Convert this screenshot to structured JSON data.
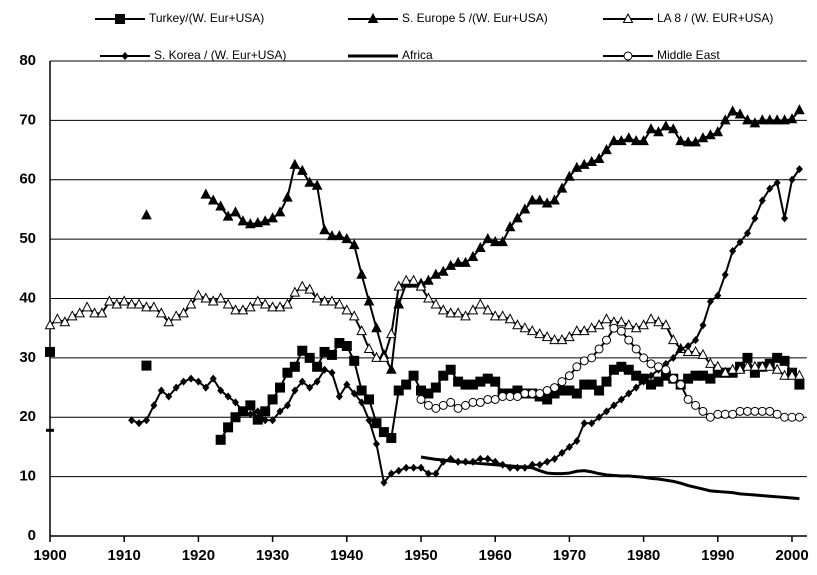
{
  "chart_data": {
    "type": "line",
    "x": [
      1900,
      1901,
      1902,
      1903,
      1904,
      1905,
      1906,
      1907,
      1908,
      1909,
      1910,
      1911,
      1912,
      1913,
      1914,
      1915,
      1916,
      1917,
      1918,
      1919,
      1920,
      1921,
      1922,
      1923,
      1924,
      1925,
      1926,
      1927,
      1928,
      1929,
      1930,
      1931,
      1932,
      1933,
      1934,
      1935,
      1936,
      1937,
      1938,
      1939,
      1940,
      1941,
      1942,
      1943,
      1944,
      1945,
      1946,
      1947,
      1948,
      1949,
      1950,
      1951,
      1952,
      1953,
      1954,
      1955,
      1956,
      1957,
      1958,
      1959,
      1960,
      1961,
      1962,
      1963,
      1964,
      1965,
      1966,
      1967,
      1968,
      1969,
      1970,
      1971,
      1972,
      1973,
      1974,
      1975,
      1976,
      1977,
      1978,
      1979,
      1980,
      1981,
      1982,
      1983,
      1984,
      1985,
      1986,
      1987,
      1988,
      1989,
      1990,
      1991,
      1992,
      1993,
      1994,
      1995,
      1996,
      1997,
      1998,
      1999,
      2000,
      2001
    ],
    "xlim": [
      1900,
      2002
    ],
    "xticks": [
      1900,
      1910,
      1920,
      1930,
      1940,
      1950,
      1960,
      1970,
      1980,
      1990,
      2000
    ],
    "ylim": [
      0,
      80
    ],
    "yticks": [
      0,
      10,
      20,
      30,
      40,
      50,
      60,
      70,
      80
    ],
    "grid": true,
    "series": [
      {
        "name": "Turkey/(W. Eur+USA)",
        "color": "#000000",
        "marker": "square",
        "values": [
          31,
          null,
          null,
          null,
          null,
          null,
          null,
          null,
          null,
          null,
          null,
          null,
          null,
          28.7,
          null,
          null,
          null,
          null,
          null,
          null,
          null,
          null,
          null,
          16.2,
          18.3,
          20,
          21,
          22,
          19.6,
          21,
          23,
          25,
          27.5,
          28.5,
          31.2,
          30,
          28.5,
          31,
          30.5,
          32.5,
          32,
          29.5,
          24.5,
          23,
          19,
          17.5,
          16.5,
          24.5,
          25.5,
          27,
          24.5,
          24,
          25,
          27,
          28,
          26,
          25.5,
          25.5,
          26,
          26.5,
          26,
          24,
          24,
          24.5,
          24,
          24,
          23.5,
          23,
          24,
          24.5,
          24.5,
          24,
          25.5,
          25.5,
          24.5,
          26,
          28,
          28.5,
          28,
          27,
          26.5,
          25.5,
          26,
          27,
          26.5,
          25.5,
          26.5,
          27,
          27,
          26.5,
          27.5,
          27.5,
          27.5,
          28.5,
          30,
          27.5,
          28.5,
          29,
          30,
          29.5,
          27.5,
          25.5
        ]
      },
      {
        "name": "S. Europe 5 /(W. Eur+USA)",
        "color": "#000000",
        "marker": "triangle",
        "values": [
          null,
          null,
          null,
          null,
          null,
          null,
          null,
          null,
          null,
          null,
          null,
          null,
          null,
          54,
          null,
          null,
          null,
          null,
          null,
          null,
          null,
          57.5,
          56.5,
          55.5,
          53.8,
          54.5,
          53,
          52.5,
          52.7,
          53,
          53.5,
          54.5,
          57,
          62.5,
          61.5,
          59.5,
          59,
          51.5,
          50.5,
          50.5,
          50,
          49,
          44,
          39.5,
          35,
          30.5,
          28,
          39,
          42.5,
          42.5,
          42.5,
          43,
          44,
          44.5,
          45.5,
          46,
          46,
          47,
          48.5,
          50,
          49.5,
          49.5,
          52,
          53.5,
          55,
          56.5,
          56.5,
          56,
          56.5,
          58.5,
          60.5,
          62,
          62.5,
          63,
          63.5,
          65,
          66.5,
          66.5,
          67,
          66.5,
          66.5,
          68.5,
          68,
          69,
          68.5,
          66.5,
          66.3,
          66.3,
          67,
          67.5,
          68,
          70,
          71.5,
          71,
          70,
          69.5,
          70,
          70,
          70,
          70,
          70.2,
          71.7
        ]
      },
      {
        "name": "LA 8 / (W. EUR+USA)",
        "color": "#000000",
        "marker": "triangle-open",
        "values": [
          35.5,
          36.5,
          36,
          37,
          37.5,
          38.5,
          37.5,
          37.5,
          39.5,
          39,
          39.5,
          39,
          39,
          38.5,
          38.5,
          37.5,
          36,
          37,
          37.5,
          39,
          40.5,
          40,
          39.5,
          40,
          39,
          38,
          38,
          38.5,
          39.5,
          39,
          38.5,
          38.5,
          39,
          41,
          42,
          41.5,
          40,
          39.5,
          39.5,
          39,
          38,
          37,
          34.5,
          31.5,
          30,
          30,
          34,
          42,
          43,
          43,
          42,
          40,
          39,
          38,
          37.5,
          37.5,
          37,
          38,
          39,
          38,
          37,
          37,
          36.5,
          35.5,
          35,
          34.5,
          34,
          33.5,
          33,
          33,
          33.5,
          34.5,
          34.5,
          35,
          35.5,
          36.5,
          36,
          36,
          35.5,
          35,
          35.5,
          36.5,
          36,
          35.5,
          33,
          31.5,
          31,
          31,
          30.5,
          29,
          28.5,
          27.5,
          28,
          28,
          28.5,
          28.5,
          28.5,
          28.5,
          28,
          27,
          27,
          27
        ]
      },
      {
        "name": "S. Korea / (W. Eur+USA)",
        "color": "#000000",
        "marker": "diamond",
        "values": [
          null,
          null,
          null,
          null,
          null,
          null,
          null,
          null,
          null,
          null,
          null,
          19.5,
          19,
          19.5,
          22,
          24.5,
          23.5,
          25,
          26,
          26.5,
          26,
          25,
          26.5,
          24.5,
          23.5,
          22.5,
          21,
          20.5,
          21,
          19.5,
          19.5,
          21,
          22,
          24.5,
          26,
          25,
          26,
          28,
          27.5,
          23.5,
          25.5,
          24,
          22.5,
          19.5,
          15.5,
          9,
          10.5,
          11,
          11.5,
          11.5,
          11.5,
          10.5,
          10.5,
          12.5,
          13,
          12.5,
          12.5,
          12.5,
          13,
          13,
          12.5,
          12,
          11.5,
          11.5,
          11.5,
          12,
          12,
          12.5,
          13,
          14,
          15,
          16,
          19,
          19,
          20,
          21,
          22,
          23,
          24,
          25,
          26,
          27,
          28,
          29,
          30,
          31.5,
          32,
          33,
          35.5,
          39.5,
          40.5,
          44,
          48,
          49.5,
          51,
          53.5,
          56.5,
          58.5,
          59.5,
          53.5,
          60,
          61.8
        ]
      },
      {
        "name": "Africa",
        "color": "#000000",
        "marker": "none",
        "values": [
          17.8,
          null,
          null,
          null,
          null,
          null,
          null,
          null,
          null,
          null,
          null,
          null,
          null,
          null,
          null,
          null,
          null,
          null,
          null,
          null,
          null,
          null,
          null,
          null,
          null,
          null,
          null,
          null,
          null,
          null,
          null,
          null,
          null,
          null,
          null,
          null,
          null,
          null,
          null,
          null,
          null,
          null,
          null,
          null,
          null,
          null,
          null,
          null,
          null,
          null,
          13.3,
          13.1,
          12.9,
          12.8,
          12.6,
          12.5,
          12.4,
          12.3,
          12.2,
          12.1,
          12,
          11.9,
          11.8,
          11.7,
          11.6,
          11.5,
          11,
          10.6,
          10.5,
          10.5,
          10.6,
          10.9,
          11,
          10.8,
          10.5,
          10.3,
          10.2,
          10.1,
          10.1,
          10,
          9.9,
          9.7,
          9.6,
          9.4,
          9.2,
          8.9,
          8.5,
          8.2,
          7.9,
          7.6,
          7.5,
          7.4,
          7.3,
          7.1,
          7,
          6.9,
          6.8,
          6.7,
          6.6,
          6.5,
          6.4,
          6.3
        ]
      },
      {
        "name": "Middle East",
        "color": "#000000",
        "marker": "circle-open",
        "values": [
          null,
          null,
          null,
          null,
          null,
          null,
          null,
          null,
          null,
          null,
          null,
          null,
          null,
          null,
          null,
          null,
          null,
          null,
          null,
          null,
          null,
          null,
          null,
          null,
          null,
          null,
          null,
          null,
          null,
          null,
          null,
          null,
          null,
          null,
          null,
          null,
          null,
          null,
          null,
          null,
          null,
          null,
          null,
          null,
          null,
          null,
          null,
          null,
          null,
          null,
          23,
          22,
          21.5,
          22,
          22.5,
          21.5,
          22,
          22.5,
          22.5,
          23,
          23,
          23.5,
          23.5,
          23.5,
          24,
          24,
          24,
          24.5,
          25,
          26,
          27,
          28.5,
          29.5,
          30,
          31.5,
          33,
          35,
          34.5,
          33,
          31.5,
          30,
          29,
          28.5,
          28,
          26.5,
          25.5,
          23,
          22,
          21,
          20,
          20.5,
          20.5,
          20.5,
          21,
          21,
          21,
          21,
          21,
          20.5,
          20,
          20,
          20
        ]
      }
    ]
  }
}
